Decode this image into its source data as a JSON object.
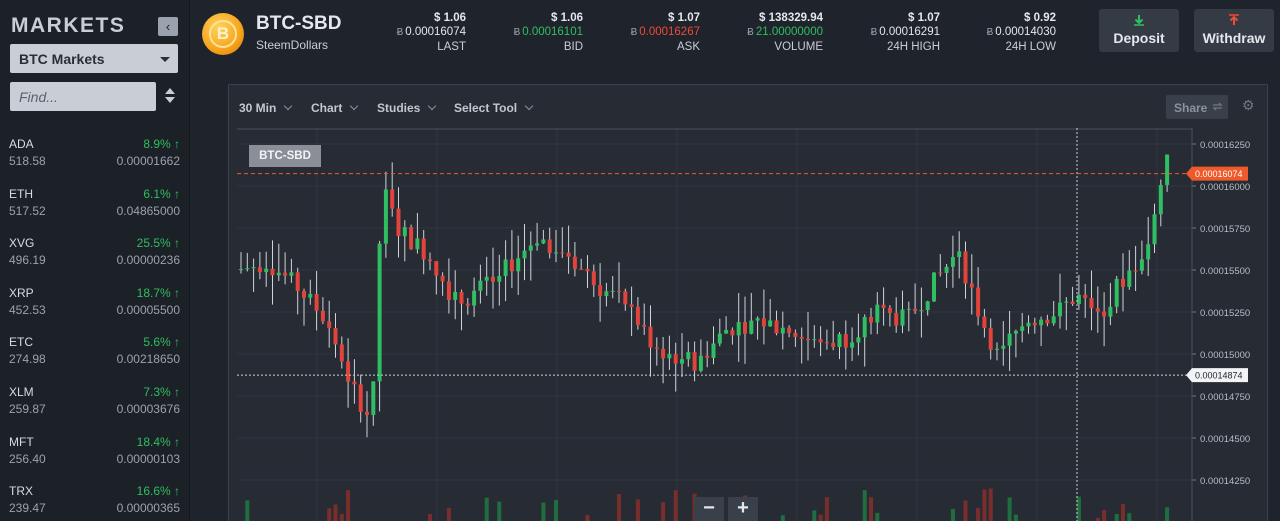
{
  "sidebar": {
    "title": "MARKETS",
    "collapse_icon": "‹",
    "market_select": "BTC Markets",
    "find_placeholder": "Find...",
    "items": [
      {
        "symbol": "ADA",
        "change": "8.9% ↑",
        "volume": "518.58",
        "price": "0.00001662"
      },
      {
        "symbol": "ETH",
        "change": "6.1% ↑",
        "volume": "517.52",
        "price": "0.04865000"
      },
      {
        "symbol": "XVG",
        "change": "25.5% ↑",
        "volume": "496.19",
        "price": "0.00000236"
      },
      {
        "symbol": "XRP",
        "change": "18.7% ↑",
        "volume": "452.53",
        "price": "0.00005500"
      },
      {
        "symbol": "ETC",
        "change": "5.6% ↑",
        "volume": "274.98",
        "price": "0.00218650"
      },
      {
        "symbol": "XLM",
        "change": "7.3% ↑",
        "volume": "259.87",
        "price": "0.00003676"
      },
      {
        "symbol": "MFT",
        "change": "18.4% ↑",
        "volume": "256.40",
        "price": "0.00000103"
      },
      {
        "symbol": "TRX",
        "change": "16.6% ↑",
        "volume": "239.47",
        "price": "0.00000365"
      }
    ]
  },
  "header": {
    "pair": "BTC-SBD",
    "name": "SteemDollars",
    "logo_letter": "B",
    "btc_symbol": "Ƀ",
    "stats": {
      "last": {
        "usd": "$ 1.06",
        "btc": "0.00016074",
        "label": "LAST"
      },
      "bid": {
        "usd": "$ 1.06",
        "btc": "0.00016101",
        "label": "BID"
      },
      "ask": {
        "usd": "$ 1.07",
        "btc": "0.00016267",
        "label": "ASK"
      },
      "volume": {
        "usd": "$ 138329.94",
        "btc": "21.00000000",
        "label": "VOLUME"
      },
      "high": {
        "usd": "$ 1.07",
        "btc": "0.00016291",
        "label": "24H HIGH"
      },
      "low": {
        "usd": "$ 0.92",
        "btc": "0.00014030",
        "label": "24H LOW"
      }
    },
    "deposit_label": "Deposit",
    "withdraw_label": "Withdraw"
  },
  "chart": {
    "toolbar": {
      "interval": "30 Min",
      "chart": "Chart",
      "studies": "Studies",
      "select_tool": "Select Tool"
    },
    "share_label": "Share",
    "pair_tag": "BTC-SBD",
    "zoom_out": "−",
    "zoom_in": "+",
    "y_ticks": [
      "0.00016250",
      "0.00016000",
      "0.00015750",
      "0.00015500",
      "0.00015250",
      "0.00015000",
      "0.00014750",
      "0.00014500",
      "0.00014250"
    ],
    "last_price_label": "0.00016074",
    "crosshair_price_label": "0.00014874",
    "colors": {
      "up": "#2fbf62",
      "down": "#e0443a",
      "price_line": "#ee5a2a",
      "grid": "#303640"
    }
  }
}
